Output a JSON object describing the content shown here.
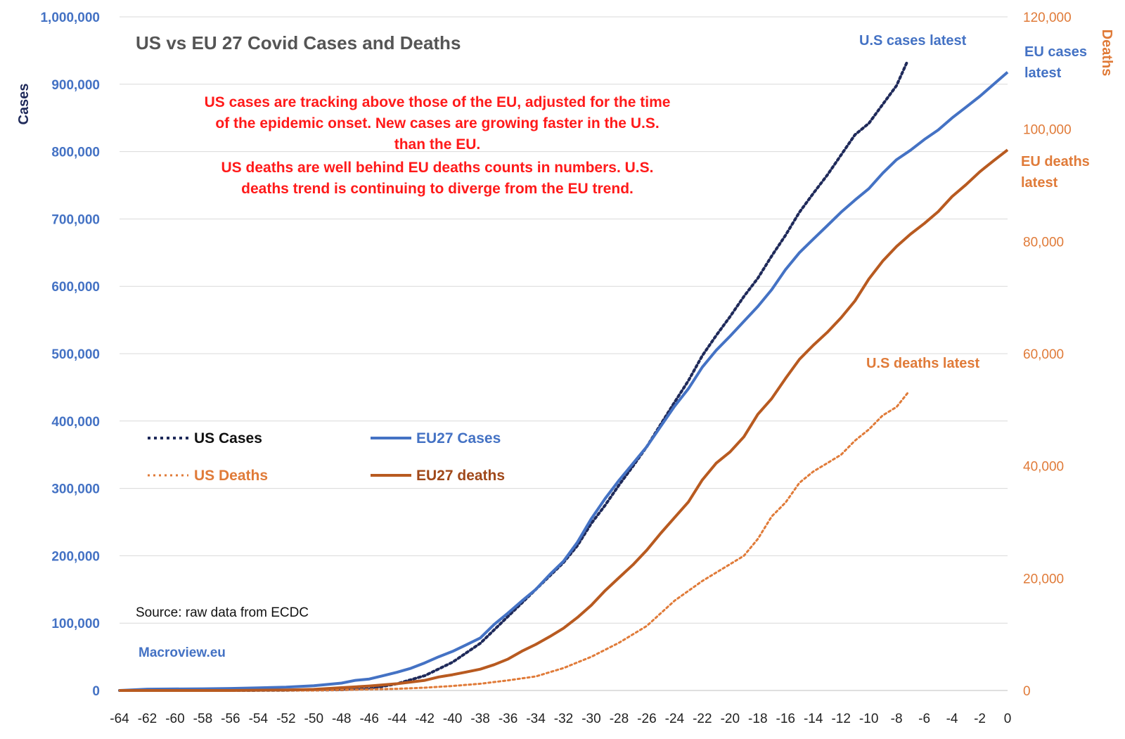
{
  "chart_data": {
    "type": "line",
    "title": "US vs EU 27 Covid Cases and Deaths",
    "ylabel_left": "Cases",
    "ylabel_right": "Deaths",
    "xlabel": "",
    "xlim": [
      -64,
      0
    ],
    "ylim_left": [
      0,
      1000000
    ],
    "ylim_right": [
      0,
      120000
    ],
    "x_ticks": [
      -64,
      -62,
      -60,
      -58,
      -56,
      -54,
      -52,
      -50,
      -48,
      -46,
      -44,
      -42,
      -40,
      -38,
      -36,
      -34,
      -32,
      -30,
      -28,
      -26,
      -24,
      -22,
      -20,
      -18,
      -16,
      -14,
      -12,
      -10,
      -8,
      -6,
      -4,
      -2,
      0
    ],
    "x_tick_labels": [
      "-64",
      "-62",
      "-60",
      "-58",
      "-56",
      "-54",
      "-52",
      "-50",
      "-48",
      "-46",
      "-44",
      "-42",
      "-40",
      "-38",
      "-36",
      "-34",
      "-32",
      "-30",
      "-28",
      "-26",
      "-24",
      "-22",
      "-20",
      "-18",
      "-16",
      "-14",
      "-12",
      "-10",
      "-8",
      "-6",
      "-4",
      "-2",
      "0"
    ],
    "y_left_tick_labels": [
      "0",
      "100,000",
      "200,000",
      "300,000",
      "400,000",
      "500,000",
      "600,000",
      "700,000",
      "800,000",
      "900,000",
      "1,000,000"
    ],
    "y_right_tick_labels": [
      "0",
      "20,000",
      "40,000",
      "60,000",
      "80,000",
      "100,000",
      "120,000"
    ],
    "grid": true,
    "legend_position": "middle-left",
    "series": [
      {
        "name": "US Cases",
        "axis": "left",
        "style": "dotted",
        "color": "#1F2A5A",
        "points": [
          [
            -64,
            0
          ],
          [
            -60,
            0
          ],
          [
            -56,
            100
          ],
          [
            -52,
            300
          ],
          [
            -50,
            600
          ],
          [
            -48,
            1000
          ],
          [
            -46,
            2500
          ],
          [
            -44,
            10000
          ],
          [
            -42,
            22000
          ],
          [
            -40,
            42000
          ],
          [
            -38,
            70000
          ],
          [
            -36,
            110000
          ],
          [
            -34,
            150000
          ],
          [
            -32,
            190000
          ],
          [
            -31,
            215000
          ],
          [
            -30,
            248000
          ],
          [
            -29,
            275000
          ],
          [
            -28,
            305000
          ],
          [
            -27,
            333000
          ],
          [
            -26,
            362000
          ],
          [
            -25,
            395000
          ],
          [
            -24,
            428000
          ],
          [
            -23,
            460000
          ],
          [
            -22,
            497000
          ],
          [
            -21,
            527000
          ],
          [
            -20,
            555000
          ],
          [
            -19,
            585000
          ],
          [
            -18,
            612000
          ],
          [
            -17,
            645000
          ],
          [
            -16,
            676000
          ],
          [
            -15,
            710000
          ],
          [
            -14,
            738000
          ],
          [
            -13,
            765000
          ],
          [
            -12,
            795000
          ],
          [
            -11,
            825000
          ],
          [
            -10,
            842000
          ],
          [
            -9,
            870000
          ],
          [
            -8,
            898000
          ],
          [
            -7.2,
            935000
          ]
        ]
      },
      {
        "name": "EU27 Cases",
        "axis": "left",
        "style": "solid",
        "color": "#4472C4",
        "points": [
          [
            -64,
            0
          ],
          [
            -62,
            2000
          ],
          [
            -58,
            2500
          ],
          [
            -56,
            3000
          ],
          [
            -54,
            4000
          ],
          [
            -52,
            5000
          ],
          [
            -50,
            7000
          ],
          [
            -48,
            11000
          ],
          [
            -47,
            15000
          ],
          [
            -46,
            17000
          ],
          [
            -45,
            22000
          ],
          [
            -44,
            27000
          ],
          [
            -43,
            33000
          ],
          [
            -42,
            41000
          ],
          [
            -41,
            50000
          ],
          [
            -40,
            58000
          ],
          [
            -39,
            68000
          ],
          [
            -38,
            78000
          ],
          [
            -37,
            98000
          ],
          [
            -36,
            115000
          ],
          [
            -35,
            133000
          ],
          [
            -34,
            150000
          ],
          [
            -33,
            172000
          ],
          [
            -32,
            192000
          ],
          [
            -31,
            220000
          ],
          [
            -30,
            255000
          ],
          [
            -29,
            285000
          ],
          [
            -28,
            312000
          ],
          [
            -27,
            337000
          ],
          [
            -26,
            362000
          ],
          [
            -25,
            392000
          ],
          [
            -24,
            422000
          ],
          [
            -23,
            448000
          ],
          [
            -22,
            480000
          ],
          [
            -21,
            505000
          ],
          [
            -20,
            526000
          ],
          [
            -19,
            548000
          ],
          [
            -18,
            570000
          ],
          [
            -17,
            595000
          ],
          [
            -16,
            625000
          ],
          [
            -15,
            650000
          ],
          [
            -14,
            670000
          ],
          [
            -13,
            690000
          ],
          [
            -12,
            710000
          ],
          [
            -11,
            728000
          ],
          [
            -10,
            745000
          ],
          [
            -9,
            768000
          ],
          [
            -8,
            788000
          ],
          [
            -7,
            802000
          ],
          [
            -6,
            818000
          ],
          [
            -5,
            832000
          ],
          [
            -4,
            850000
          ],
          [
            -3,
            866000
          ],
          [
            -2,
            882000
          ],
          [
            -1,
            900000
          ],
          [
            0,
            918000
          ]
        ]
      },
      {
        "name": "US Deaths",
        "axis": "right",
        "style": "dotted",
        "color": "#E07B39",
        "points": [
          [
            -64,
            0
          ],
          [
            -50,
            0
          ],
          [
            -46,
            200
          ],
          [
            -44,
            300
          ],
          [
            -42,
            500
          ],
          [
            -40,
            800
          ],
          [
            -38,
            1200
          ],
          [
            -36,
            1800
          ],
          [
            -34,
            2500
          ],
          [
            -32,
            4000
          ],
          [
            -30,
            6000
          ],
          [
            -28,
            8500
          ],
          [
            -26,
            11500
          ],
          [
            -24,
            16000
          ],
          [
            -22,
            19500
          ],
          [
            -20,
            22500
          ],
          [
            -19,
            24000
          ],
          [
            -18,
            27000
          ],
          [
            -17,
            31000
          ],
          [
            -16,
            33500
          ],
          [
            -15,
            37000
          ],
          [
            -14,
            39000
          ],
          [
            -13,
            40500
          ],
          [
            -12,
            42000
          ],
          [
            -11,
            44500
          ],
          [
            -10,
            46500
          ],
          [
            -9,
            49000
          ],
          [
            -8,
            50500
          ],
          [
            -7.2,
            53000
          ]
        ]
      },
      {
        "name": "EU27 deaths",
        "axis": "right",
        "style": "solid",
        "color": "#B85A20",
        "points": [
          [
            -64,
            0
          ],
          [
            -56,
            0
          ],
          [
            -52,
            100
          ],
          [
            -50,
            200
          ],
          [
            -48,
            500
          ],
          [
            -46,
            800
          ],
          [
            -44,
            1200
          ],
          [
            -43,
            1500
          ],
          [
            -42,
            1800
          ],
          [
            -41,
            2400
          ],
          [
            -40,
            2800
          ],
          [
            -39,
            3300
          ],
          [
            -38,
            3800
          ],
          [
            -37,
            4600
          ],
          [
            -36,
            5600
          ],
          [
            -35,
            7000
          ],
          [
            -34,
            8200
          ],
          [
            -33,
            9600
          ],
          [
            -32,
            11100
          ],
          [
            -31,
            13000
          ],
          [
            -30,
            15200
          ],
          [
            -29,
            17800
          ],
          [
            -28,
            20100
          ],
          [
            -27,
            22400
          ],
          [
            -26,
            25000
          ],
          [
            -25,
            28000
          ],
          [
            -24,
            30800
          ],
          [
            -23,
            33600
          ],
          [
            -22,
            37500
          ],
          [
            -21,
            40500
          ],
          [
            -20,
            42500
          ],
          [
            -19,
            45200
          ],
          [
            -18,
            49200
          ],
          [
            -17,
            52000
          ],
          [
            -16,
            55600
          ],
          [
            -15,
            59000
          ],
          [
            -14,
            61500
          ],
          [
            -13,
            63800
          ],
          [
            -12,
            66400
          ],
          [
            -11,
            69400
          ],
          [
            -10,
            73300
          ],
          [
            -9,
            76500
          ],
          [
            -8,
            79100
          ],
          [
            -7,
            81300
          ],
          [
            -6,
            83200
          ],
          [
            -5,
            85300
          ],
          [
            -4,
            88000
          ],
          [
            -3,
            90100
          ],
          [
            -2,
            92400
          ],
          [
            -1,
            94400
          ],
          [
            0,
            96300
          ]
        ]
      }
    ],
    "annotations": {
      "note_lines": [
        "US cases are tracking above those of the EU, adjusted for the time",
        "of the epidemic onset. New cases are growing faster in the U.S.",
        "than the EU.",
        "US deaths are well behind EU deaths counts in numbers. U.S.",
        "deaths trend is continuing to diverge from the EU trend."
      ],
      "us_cases_latest": "U.S cases latest",
      "eu_cases_latest": [
        "EU cases",
        "latest"
      ],
      "eu_deaths_latest": [
        "EU deaths",
        "latest"
      ],
      "us_deaths_latest": "U.S deaths latest",
      "source": "Source: raw data from ECDC",
      "brand": "Macroview.eu"
    }
  }
}
